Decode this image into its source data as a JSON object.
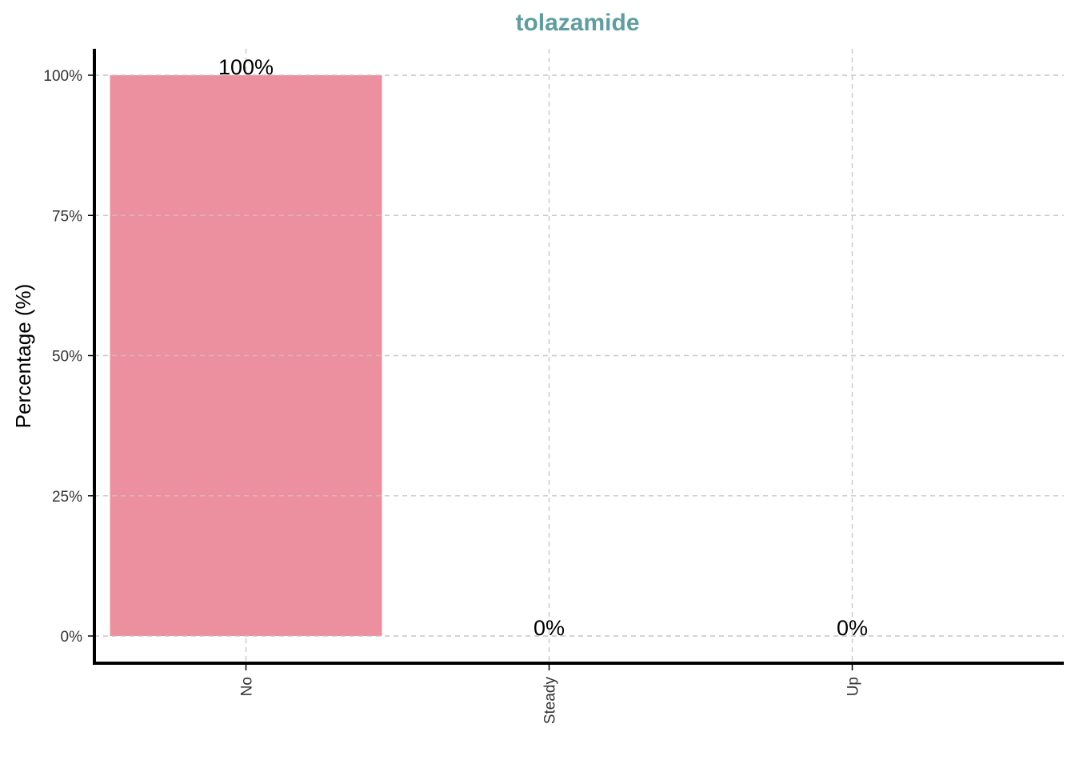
{
  "chart_data": {
    "type": "bar",
    "title": "tolazamide",
    "ylabel": "Percentage (%)",
    "xlabel": "",
    "categories": [
      "No",
      "Steady",
      "Up"
    ],
    "values": [
      100,
      0,
      0
    ],
    "data_labels": [
      "100%",
      "0%",
      "0%"
    ],
    "yticks": [
      0,
      25,
      50,
      75,
      100
    ],
    "ytick_labels": [
      "0%",
      "25%",
      "50%",
      "75%",
      "100%"
    ],
    "ylim": [
      -5,
      105
    ],
    "grid": true,
    "legend": "none",
    "colors": {
      "bar": "#ec909f",
      "title": "#5f9ea0",
      "grid": "#cccccc",
      "axis": "#000000"
    }
  }
}
